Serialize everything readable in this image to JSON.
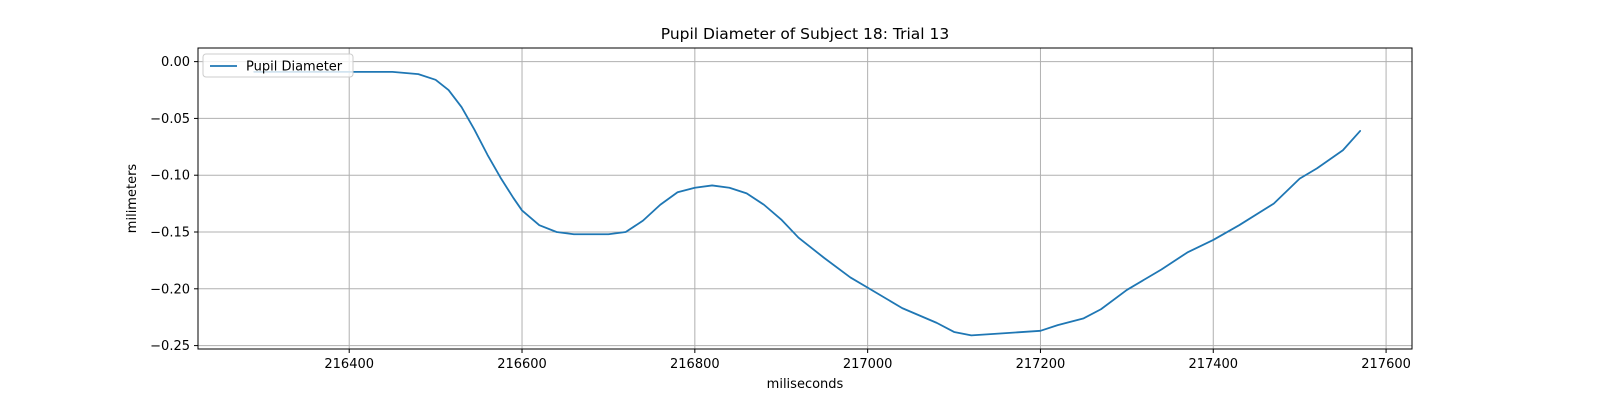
{
  "chart_data": {
    "type": "line",
    "title": "Pupil Diameter of Subject 18: Trial 13",
    "xlabel": "miliseconds",
    "ylabel": "milimeters",
    "xlim": [
      216225,
      217630
    ],
    "ylim": [
      -0.253,
      0.012
    ],
    "xticks": [
      216400,
      216600,
      216800,
      217000,
      217200,
      217400,
      217600
    ],
    "yticks": [
      0.0,
      -0.05,
      -0.1,
      -0.15,
      -0.2,
      -0.25
    ],
    "ytick_labels": [
      "0.00",
      "−0.05",
      "−0.10",
      "−0.15",
      "−0.20",
      "−0.25"
    ],
    "grid": true,
    "legend_position": "upper-left",
    "series": [
      {
        "name": "Pupil Diameter",
        "color": "#1f77b4",
        "x": [
          216290,
          216350,
          216400,
          216450,
          216480,
          216500,
          216515,
          216530,
          216545,
          216560,
          216575,
          216590,
          216600,
          216620,
          216640,
          216660,
          216680,
          216700,
          216720,
          216740,
          216760,
          216780,
          216800,
          216820,
          216840,
          216860,
          216880,
          216900,
          216920,
          216950,
          216980,
          217000,
          217040,
          217080,
          217100,
          217120,
          217160,
          217200,
          217220,
          217250,
          217270,
          217300,
          217340,
          217370,
          217400,
          217430,
          217470,
          217500,
          217520,
          217550,
          217570
        ],
        "y": [
          -0.009,
          -0.009,
          -0.009,
          -0.009,
          -0.011,
          -0.016,
          -0.025,
          -0.04,
          -0.06,
          -0.082,
          -0.102,
          -0.12,
          -0.131,
          -0.144,
          -0.15,
          -0.152,
          -0.152,
          -0.152,
          -0.15,
          -0.14,
          -0.126,
          -0.115,
          -0.111,
          -0.109,
          -0.111,
          -0.116,
          -0.126,
          -0.139,
          -0.155,
          -0.173,
          -0.19,
          -0.199,
          -0.217,
          -0.23,
          -0.238,
          -0.241,
          -0.239,
          -0.237,
          -0.232,
          -0.226,
          -0.218,
          -0.201,
          -0.183,
          -0.168,
          -0.157,
          -0.144,
          -0.125,
          -0.103,
          -0.094,
          -0.078,
          -0.061
        ]
      }
    ]
  }
}
